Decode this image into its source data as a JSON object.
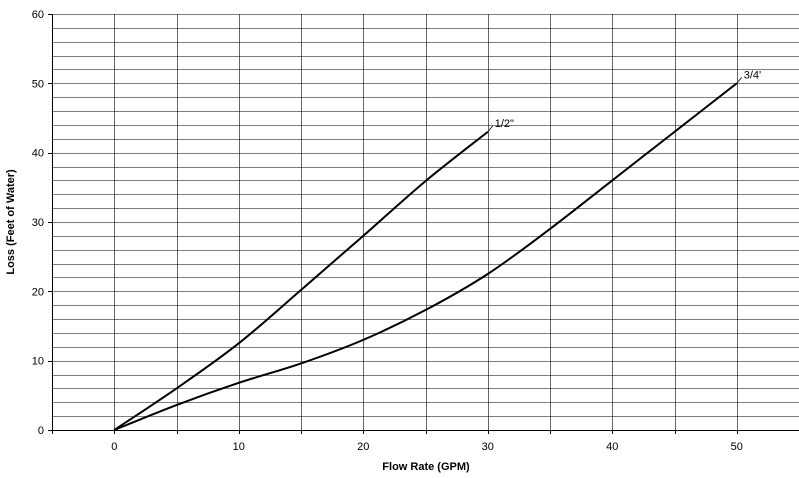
{
  "chart_data": {
    "type": "line",
    "title": "",
    "xlabel": "Flow Rate (GPM)",
    "ylabel": "Loss (Feet of Water)",
    "xlim": [
      -5,
      55
    ],
    "ylim": [
      0,
      60
    ],
    "x_ticks": [
      0,
      10,
      20,
      30,
      40,
      50
    ],
    "y_ticks": [
      0,
      10,
      20,
      30,
      40,
      50,
      60
    ],
    "x_tick_labels": [
      "0",
      "10",
      "20",
      "30",
      "40",
      "50"
    ],
    "y_tick_labels": [
      "0",
      "10",
      "20",
      "30",
      "40",
      "50",
      "60"
    ],
    "x_gridlines": [
      0,
      5,
      10,
      15,
      20,
      25,
      30,
      35,
      40,
      45,
      50
    ],
    "y_gridlines": [
      0,
      2,
      4,
      6,
      8,
      10,
      12,
      14,
      16,
      18,
      20,
      22,
      24,
      26,
      28,
      30,
      32,
      34,
      36,
      38,
      40,
      42,
      44,
      46,
      48,
      50,
      52,
      54,
      56,
      58,
      60
    ],
    "grid": true,
    "legend": "none",
    "colors": {
      "line": "#000000",
      "grid": "#000000",
      "background": "#ffffff"
    },
    "series": [
      {
        "name": "1/2\"",
        "x": [
          0,
          5,
          10,
          15,
          20,
          25,
          30
        ],
        "y": [
          0,
          6,
          12.5,
          20.2,
          28,
          35.9,
          43
        ]
      },
      {
        "name": "3/4'",
        "x": [
          0,
          5,
          10,
          15,
          20,
          25,
          30,
          35,
          40,
          45,
          50
        ],
        "y": [
          0,
          3.6,
          6.8,
          9.6,
          13,
          17.3,
          22.5,
          29,
          36,
          43,
          50
        ]
      }
    ]
  }
}
